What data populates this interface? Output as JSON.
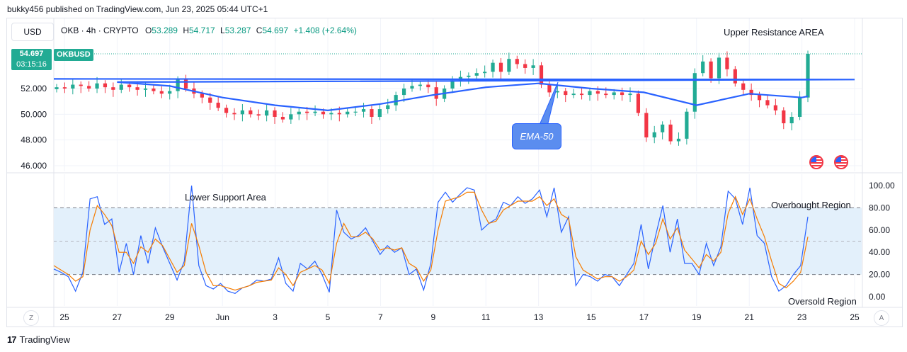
{
  "header": {
    "published": "bukky456 published on TradingView.com, Jun 23, 2025 05:44 UTC+1"
  },
  "toolbar": {
    "currency": "USD"
  },
  "legend": {
    "symbol": "OKB · 4h · CRYPTO",
    "o_label": "O",
    "o": "53.289",
    "h_label": "H",
    "h": "54.717",
    "l_label": "L",
    "l": "53.287",
    "c_label": "C",
    "c": "54.697",
    "change": "+1.408 (+2.64%)"
  },
  "price_tag": {
    "price": "54.697",
    "countdown": "03:15:16",
    "symbol": "OKBUSD"
  },
  "annotations": {
    "upper": "Upper Resistance AREA",
    "lower": "Lower Support Area",
    "overbought": "Overbought Region",
    "oversold": "Oversold Region",
    "ema": "EMA-50"
  },
  "footer": {
    "brand": "TradingView",
    "z_button": "Z",
    "a_button": "A"
  },
  "colors": {
    "up": "#22ab94",
    "down": "#f23645",
    "ema": "#2962ff",
    "k_line": "#2962ff",
    "d_line": "#f57c00",
    "band": "#e3f0fb"
  },
  "chart_data": [
    {
      "type": "candlestick",
      "price_axis_ticks": [
        "52.000",
        "50.000",
        "48.000",
        "46.000"
      ],
      "ylim": [
        45.5,
        57
      ],
      "x_ticks": [
        "25",
        "27",
        "29",
        "Jun",
        "3",
        "5",
        "7",
        "9",
        "11",
        "13",
        "15",
        "17",
        "19",
        "21",
        "23",
        "25"
      ],
      "close_path": [
        52.1,
        52.0,
        52.3,
        52.2,
        52.0,
        52.4,
        52.1,
        51.9,
        52.3,
        52.1,
        51.9,
        52.0,
        51.8,
        51.6,
        51.8,
        52.7,
        52.0,
        51.6,
        51.3,
        50.9,
        50.5,
        50.1,
        50.0,
        50.3,
        50.0,
        49.9,
        50.3,
        49.8,
        49.6,
        50.0,
        50.2,
        50.1,
        50.2,
        50.0,
        50.1,
        50.0,
        50.2,
        50.2,
        50.4,
        49.8,
        50.4,
        50.7,
        51.5,
        52.0,
        52.2,
        52.3,
        52.1,
        51.2,
        52.0,
        52.6,
        52.9,
        53.0,
        53.2,
        53.3,
        54.0,
        53.3,
        54.3,
        53.9,
        53.6,
        53.8,
        52.3,
        51.7,
        51.8,
        51.5,
        51.6,
        51.5,
        51.8,
        51.6,
        51.5,
        51.7,
        51.5,
        51.6,
        50.1,
        48.2,
        48.6,
        49.2,
        47.9,
        48.1,
        50.2,
        53.2,
        54.1,
        52.8,
        54.4,
        53.5,
        52.4,
        51.9,
        51.5,
        51.1,
        50.7,
        50.3,
        49.3,
        49.8,
        51.3,
        54.697
      ],
      "ema50": [
        {
          "x": "25",
          "y": 52.7
        },
        {
          "x": "27",
          "y": 52.5
        },
        {
          "x": "29",
          "y": 52.2
        },
        {
          "x": "Jun",
          "y": 51.3
        },
        {
          "x": "3",
          "y": 50.7
        },
        {
          "x": "5",
          "y": 50.3
        },
        {
          "x": "7",
          "y": 50.8
        },
        {
          "x": "9",
          "y": 51.5
        },
        {
          "x": "11",
          "y": 52.1
        },
        {
          "x": "13",
          "y": 52.4
        },
        {
          "x": "15",
          "y": 52.0
        },
        {
          "x": "17",
          "y": 51.7
        },
        {
          "x": "19",
          "y": 50.7
        },
        {
          "x": "21",
          "y": 51.6
        },
        {
          "x": "23",
          "y": 51.3
        }
      ]
    },
    {
      "type": "line",
      "title": "",
      "y_ticks": [
        "100.00",
        "80.00",
        "60.00",
        "40.00",
        "20.00",
        "0.00"
      ],
      "ylim": [
        -5,
        106
      ],
      "band": [
        20,
        80
      ],
      "midline": 50,
      "series": [
        {
          "values": [
            25,
            22,
            18,
            5,
            22,
            88,
            90,
            65,
            70,
            22,
            48,
            20,
            55,
            30,
            62,
            45,
            30,
            15,
            32,
            100,
            28,
            10,
            7,
            12,
            5,
            3,
            8,
            10,
            15,
            14,
            16,
            35,
            12,
            5,
            30,
            25,
            32,
            20,
            4,
            78,
            58,
            52,
            55,
            62,
            50,
            38,
            46,
            40,
            44,
            20,
            25,
            6,
            30,
            85,
            94,
            85,
            92,
            98,
            96,
            60,
            66,
            70,
            85,
            82,
            90,
            84,
            88,
            96,
            72,
            98,
            58,
            72,
            10,
            20,
            18,
            14,
            20,
            18,
            10,
            20,
            30,
            65,
            25,
            55,
            82,
            40,
            70,
            30,
            30,
            20,
            48,
            28,
            45,
            95,
            88,
            65,
            98,
            55,
            48,
            18,
            5,
            10,
            20,
            28,
            72
          ]
        },
        {
          "values": [
            28,
            24,
            20,
            14,
            18,
            60,
            82,
            74,
            64,
            40,
            40,
            30,
            45,
            40,
            52,
            46,
            34,
            22,
            28,
            66,
            46,
            22,
            10,
            10,
            8,
            6,
            8,
            10,
            13,
            14,
            15,
            26,
            20,
            10,
            22,
            25,
            28,
            24,
            12,
            48,
            66,
            54,
            54,
            58,
            52,
            42,
            44,
            42,
            44,
            30,
            26,
            14,
            24,
            60,
            86,
            88,
            90,
            94,
            94,
            78,
            66,
            68,
            78,
            82,
            86,
            86,
            86,
            90,
            82,
            88,
            74,
            70,
            36,
            24,
            20,
            16,
            18,
            18,
            14,
            18,
            24,
            50,
            38,
            48,
            70,
            52,
            62,
            42,
            34,
            26,
            38,
            32,
            40,
            75,
            90,
            74,
            88,
            70,
            54,
            32,
            12,
            8,
            14,
            22,
            54
          ]
        }
      ]
    }
  ]
}
